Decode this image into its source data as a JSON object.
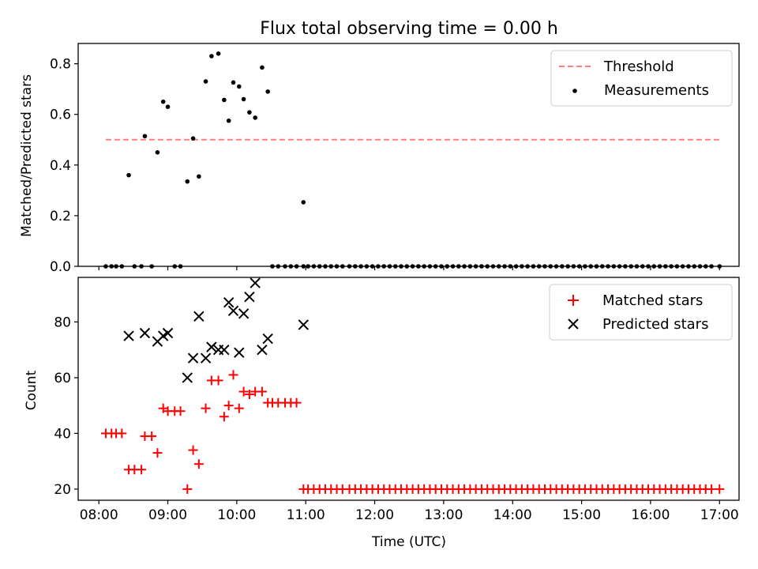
{
  "chart_data": {
    "type": "scatter",
    "title": "Flux total observing time = 0.00 h",
    "x_unit": "time of day (UTC)",
    "xlabel": "Time (UTC)",
    "xlim": [
      "07:42",
      "17:17"
    ],
    "x_ticks": [
      "08:00",
      "09:00",
      "10:00",
      "11:00",
      "12:00",
      "13:00",
      "14:00",
      "15:00",
      "16:00",
      "17:00"
    ],
    "panels": [
      {
        "ylabel": "Matched/Predicted stars",
        "ylim": [
          0,
          0.88
        ],
        "y_ticks": [
          "0.0",
          "0.2",
          "0.4",
          "0.6",
          "0.8"
        ],
        "legend_position": "top-right",
        "threshold": {
          "name": "Threshold",
          "value": 0.5,
          "x_range": [
            "08:06",
            "17:00"
          ],
          "color": "#ff7f7f",
          "style": "dashed"
        },
        "series": [
          {
            "name": "Measurements",
            "marker": "dot",
            "color": "#000000",
            "points": [
              [
                "08:06",
                0
              ],
              [
                "08:11",
                0
              ],
              [
                "08:15",
                0
              ],
              [
                "08:20",
                0
              ],
              [
                "08:26",
                0.36
              ],
              [
                "08:31",
                0
              ],
              [
                "08:37",
                0
              ],
              [
                "08:40",
                0.514
              ],
              [
                "08:46",
                0
              ],
              [
                "08:51",
                0.45
              ],
              [
                "08:56",
                0.65
              ],
              [
                "09:00",
                0.63
              ],
              [
                "09:06",
                0
              ],
              [
                "09:11",
                0
              ],
              [
                "09:17",
                0.335
              ],
              [
                "09:22",
                0.505
              ],
              [
                "09:27",
                0.355
              ],
              [
                "09:33",
                0.73
              ],
              [
                "09:38",
                0.83
              ],
              [
                "09:44",
                0.84
              ],
              [
                "09:49",
                0.657
              ],
              [
                "09:53",
                0.575
              ],
              [
                "09:57",
                0.726
              ],
              [
                "10:02",
                0.71
              ],
              [
                "10:06",
                0.66
              ],
              [
                "10:11",
                0.608
              ],
              [
                "10:16",
                0.587
              ],
              [
                "10:22",
                0.785
              ],
              [
                "10:27",
                0.69
              ],
              [
                "10:31",
                0
              ],
              [
                "10:36",
                0
              ],
              [
                "10:42",
                0
              ],
              [
                "10:47",
                0
              ],
              [
                "10:52",
                0
              ],
              [
                "10:58",
                0.253
              ],
              [
                "10:58",
                0
              ],
              [
                "11:02",
                0
              ],
              [
                "11:07",
                0
              ],
              [
                "11:12",
                0
              ],
              [
                "11:17",
                0
              ],
              [
                "11:22",
                0
              ],
              [
                "11:27",
                0
              ],
              [
                "11:32",
                0
              ],
              [
                "11:38",
                0
              ],
              [
                "11:43",
                0
              ],
              [
                "11:48",
                0
              ],
              [
                "11:53",
                0
              ],
              [
                "11:58",
                0
              ],
              [
                "12:03",
                0
              ],
              [
                "12:08",
                0
              ],
              [
                "12:13",
                0
              ],
              [
                "12:18",
                0
              ],
              [
                "12:23",
                0
              ],
              [
                "12:28",
                0
              ],
              [
                "12:33",
                0
              ],
              [
                "12:38",
                0
              ],
              [
                "12:43",
                0
              ],
              [
                "12:48",
                0
              ],
              [
                "12:53",
                0
              ],
              [
                "12:58",
                0
              ],
              [
                "13:03",
                0
              ],
              [
                "13:08",
                0
              ],
              [
                "13:13",
                0
              ],
              [
                "13:18",
                0
              ],
              [
                "13:23",
                0
              ],
              [
                "13:28",
                0
              ],
              [
                "13:33",
                0
              ],
              [
                "13:38",
                0
              ],
              [
                "13:43",
                0
              ],
              [
                "13:48",
                0
              ],
              [
                "13:53",
                0
              ],
              [
                "13:58",
                0
              ],
              [
                "14:03",
                0
              ],
              [
                "14:08",
                0
              ],
              [
                "14:13",
                0
              ],
              [
                "14:18",
                0
              ],
              [
                "14:23",
                0
              ],
              [
                "14:28",
                0
              ],
              [
                "14:33",
                0
              ],
              [
                "14:38",
                0
              ],
              [
                "14:43",
                0
              ],
              [
                "14:48",
                0
              ],
              [
                "14:53",
                0
              ],
              [
                "14:58",
                0
              ],
              [
                "15:03",
                0
              ],
              [
                "15:08",
                0
              ],
              [
                "15:13",
                0
              ],
              [
                "15:18",
                0
              ],
              [
                "15:23",
                0
              ],
              [
                "15:28",
                0
              ],
              [
                "15:33",
                0
              ],
              [
                "15:38",
                0
              ],
              [
                "15:43",
                0
              ],
              [
                "15:48",
                0
              ],
              [
                "15:53",
                0
              ],
              [
                "15:58",
                0
              ],
              [
                "16:03",
                0
              ],
              [
                "16:08",
                0
              ],
              [
                "16:13",
                0
              ],
              [
                "16:18",
                0
              ],
              [
                "16:23",
                0
              ],
              [
                "16:28",
                0
              ],
              [
                "16:33",
                0
              ],
              [
                "16:38",
                0
              ],
              [
                "16:43",
                0
              ],
              [
                "16:48",
                0
              ],
              [
                "16:53",
                0
              ],
              [
                "17:00",
                0
              ]
            ]
          }
        ]
      },
      {
        "ylabel": "Count",
        "ylim": [
          16,
          96
        ],
        "y_ticks": [
          "20",
          "40",
          "60",
          "80"
        ],
        "legend_position": "top-right",
        "series": [
          {
            "name": "Matched stars",
            "marker": "plus",
            "color": "#ff0000",
            "points": [
              [
                "08:06",
                40
              ],
              [
                "08:11",
                40
              ],
              [
                "08:15",
                40
              ],
              [
                "08:20",
                40
              ],
              [
                "08:26",
                27
              ],
              [
                "08:31",
                27
              ],
              [
                "08:37",
                27
              ],
              [
                "08:40",
                39
              ],
              [
                "08:46",
                39
              ],
              [
                "08:51",
                33
              ],
              [
                "08:56",
                49
              ],
              [
                "09:00",
                48
              ],
              [
                "09:06",
                48
              ],
              [
                "09:11",
                48
              ],
              [
                "09:17",
                20
              ],
              [
                "09:22",
                34
              ],
              [
                "09:27",
                29
              ],
              [
                "09:33",
                49
              ],
              [
                "09:38",
                59
              ],
              [
                "09:44",
                59
              ],
              [
                "09:49",
                46
              ],
              [
                "09:53",
                50
              ],
              [
                "09:57",
                61
              ],
              [
                "10:02",
                49
              ],
              [
                "10:06",
                55
              ],
              [
                "10:11",
                54
              ],
              [
                "10:16",
                55
              ],
              [
                "10:22",
                55
              ],
              [
                "10:27",
                51
              ],
              [
                "10:31",
                51
              ],
              [
                "10:36",
                51
              ],
              [
                "10:42",
                51
              ],
              [
                "10:47",
                51
              ],
              [
                "10:52",
                51
              ],
              [
                "10:58",
                20
              ],
              [
                "11:02",
                20
              ],
              [
                "11:07",
                20
              ],
              [
                "11:12",
                20
              ],
              [
                "11:17",
                20
              ],
              [
                "11:22",
                20
              ],
              [
                "11:27",
                20
              ],
              [
                "11:32",
                20
              ],
              [
                "11:38",
                20
              ],
              [
                "11:43",
                20
              ],
              [
                "11:48",
                20
              ],
              [
                "11:53",
                20
              ],
              [
                "11:58",
                20
              ],
              [
                "12:03",
                20
              ],
              [
                "12:08",
                20
              ],
              [
                "12:13",
                20
              ],
              [
                "12:18",
                20
              ],
              [
                "12:23",
                20
              ],
              [
                "12:28",
                20
              ],
              [
                "12:33",
                20
              ],
              [
                "12:38",
                20
              ],
              [
                "12:43",
                20
              ],
              [
                "12:48",
                20
              ],
              [
                "12:53",
                20
              ],
              [
                "12:58",
                20
              ],
              [
                "13:03",
                20
              ],
              [
                "13:08",
                20
              ],
              [
                "13:13",
                20
              ],
              [
                "13:18",
                20
              ],
              [
                "13:23",
                20
              ],
              [
                "13:28",
                20
              ],
              [
                "13:33",
                20
              ],
              [
                "13:38",
                20
              ],
              [
                "13:43",
                20
              ],
              [
                "13:48",
                20
              ],
              [
                "13:53",
                20
              ],
              [
                "13:58",
                20
              ],
              [
                "14:03",
                20
              ],
              [
                "14:08",
                20
              ],
              [
                "14:13",
                20
              ],
              [
                "14:18",
                20
              ],
              [
                "14:23",
                20
              ],
              [
                "14:28",
                20
              ],
              [
                "14:33",
                20
              ],
              [
                "14:38",
                20
              ],
              [
                "14:43",
                20
              ],
              [
                "14:48",
                20
              ],
              [
                "14:53",
                20
              ],
              [
                "14:58",
                20
              ],
              [
                "15:03",
                20
              ],
              [
                "15:08",
                20
              ],
              [
                "15:13",
                20
              ],
              [
                "15:18",
                20
              ],
              [
                "15:23",
                20
              ],
              [
                "15:28",
                20
              ],
              [
                "15:33",
                20
              ],
              [
                "15:38",
                20
              ],
              [
                "15:43",
                20
              ],
              [
                "15:48",
                20
              ],
              [
                "15:53",
                20
              ],
              [
                "15:58",
                20
              ],
              [
                "16:03",
                20
              ],
              [
                "16:08",
                20
              ],
              [
                "16:13",
                20
              ],
              [
                "16:18",
                20
              ],
              [
                "16:23",
                20
              ],
              [
                "16:28",
                20
              ],
              [
                "16:33",
                20
              ],
              [
                "16:38",
                20
              ],
              [
                "16:43",
                20
              ],
              [
                "16:48",
                20
              ],
              [
                "16:53",
                20
              ],
              [
                "17:00",
                20
              ]
            ]
          },
          {
            "name": "Predicted stars",
            "marker": "x",
            "color": "#000000",
            "points": [
              [
                "08:26",
                75
              ],
              [
                "08:40",
                76
              ],
              [
                "08:51",
                73
              ],
              [
                "08:56",
                75
              ],
              [
                "09:00",
                76
              ],
              [
                "09:17",
                60
              ],
              [
                "09:22",
                67
              ],
              [
                "09:27",
                82
              ],
              [
                "09:33",
                67
              ],
              [
                "09:38",
                71
              ],
              [
                "09:44",
                70
              ],
              [
                "09:49",
                70
              ],
              [
                "09:53",
                87
              ],
              [
                "09:57",
                84
              ],
              [
                "10:02",
                69
              ],
              [
                "10:06",
                83
              ],
              [
                "10:11",
                89
              ],
              [
                "10:16",
                94
              ],
              [
                "10:22",
                70
              ],
              [
                "10:27",
                74
              ],
              [
                "10:58",
                79
              ]
            ]
          }
        ]
      }
    ]
  }
}
